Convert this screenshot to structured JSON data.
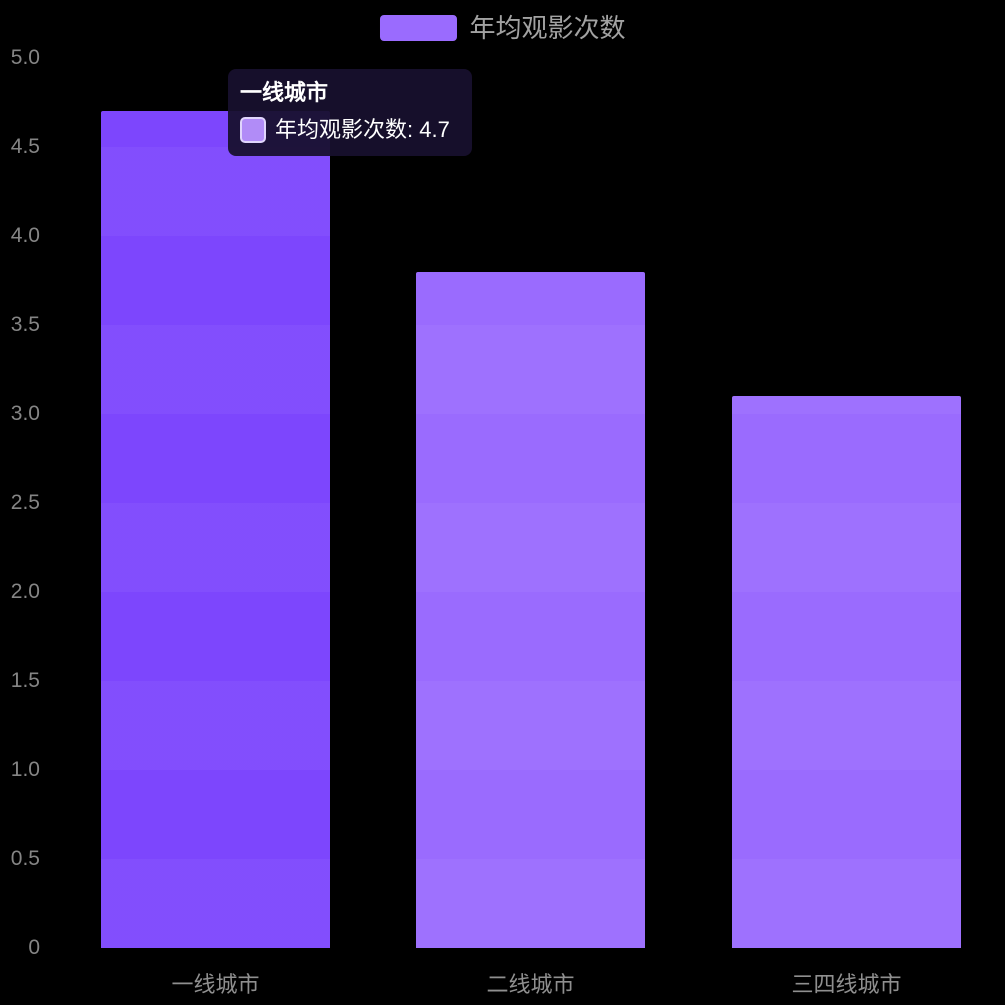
{
  "legend": {
    "label": "年均观影次数",
    "marker_color": "#9a6bfe"
  },
  "tooltip": {
    "title": "一线城市",
    "series_label": "年均观影次数",
    "value": "4.7",
    "line": "年均观影次数: 4.7",
    "swatch_fill": "#b18cf7",
    "swatch_border": "#e0d5fc",
    "background": "rgba(23,16,46,0.94)"
  },
  "chart_data": {
    "type": "bar",
    "title": "",
    "categories": [
      "一线城市",
      "二线城市",
      "三四线城市"
    ],
    "series": [
      {
        "name": "年均观影次数",
        "values": [
          4.7,
          3.8,
          3.1
        ]
      }
    ],
    "xlabel": "",
    "ylabel": "",
    "ylim": [
      0,
      5
    ],
    "ytick_step": 0.5,
    "ytick_labels": [
      "0",
      "0.5",
      "1.0",
      "1.5",
      "2.0",
      "2.5",
      "3.0",
      "3.5",
      "4.0",
      "4.5",
      "5.0"
    ],
    "grid": false,
    "legend_position": "top-center",
    "background_color": "#000000",
    "highlighted_category": "一线城市",
    "colors": {
      "bar_highlight": "#7d46fd",
      "bar_default": "#9a6bfe",
      "axis_tick_label": "#858585",
      "category_label": "#8f8f8f",
      "legend_text": "#a2a2a2"
    }
  }
}
